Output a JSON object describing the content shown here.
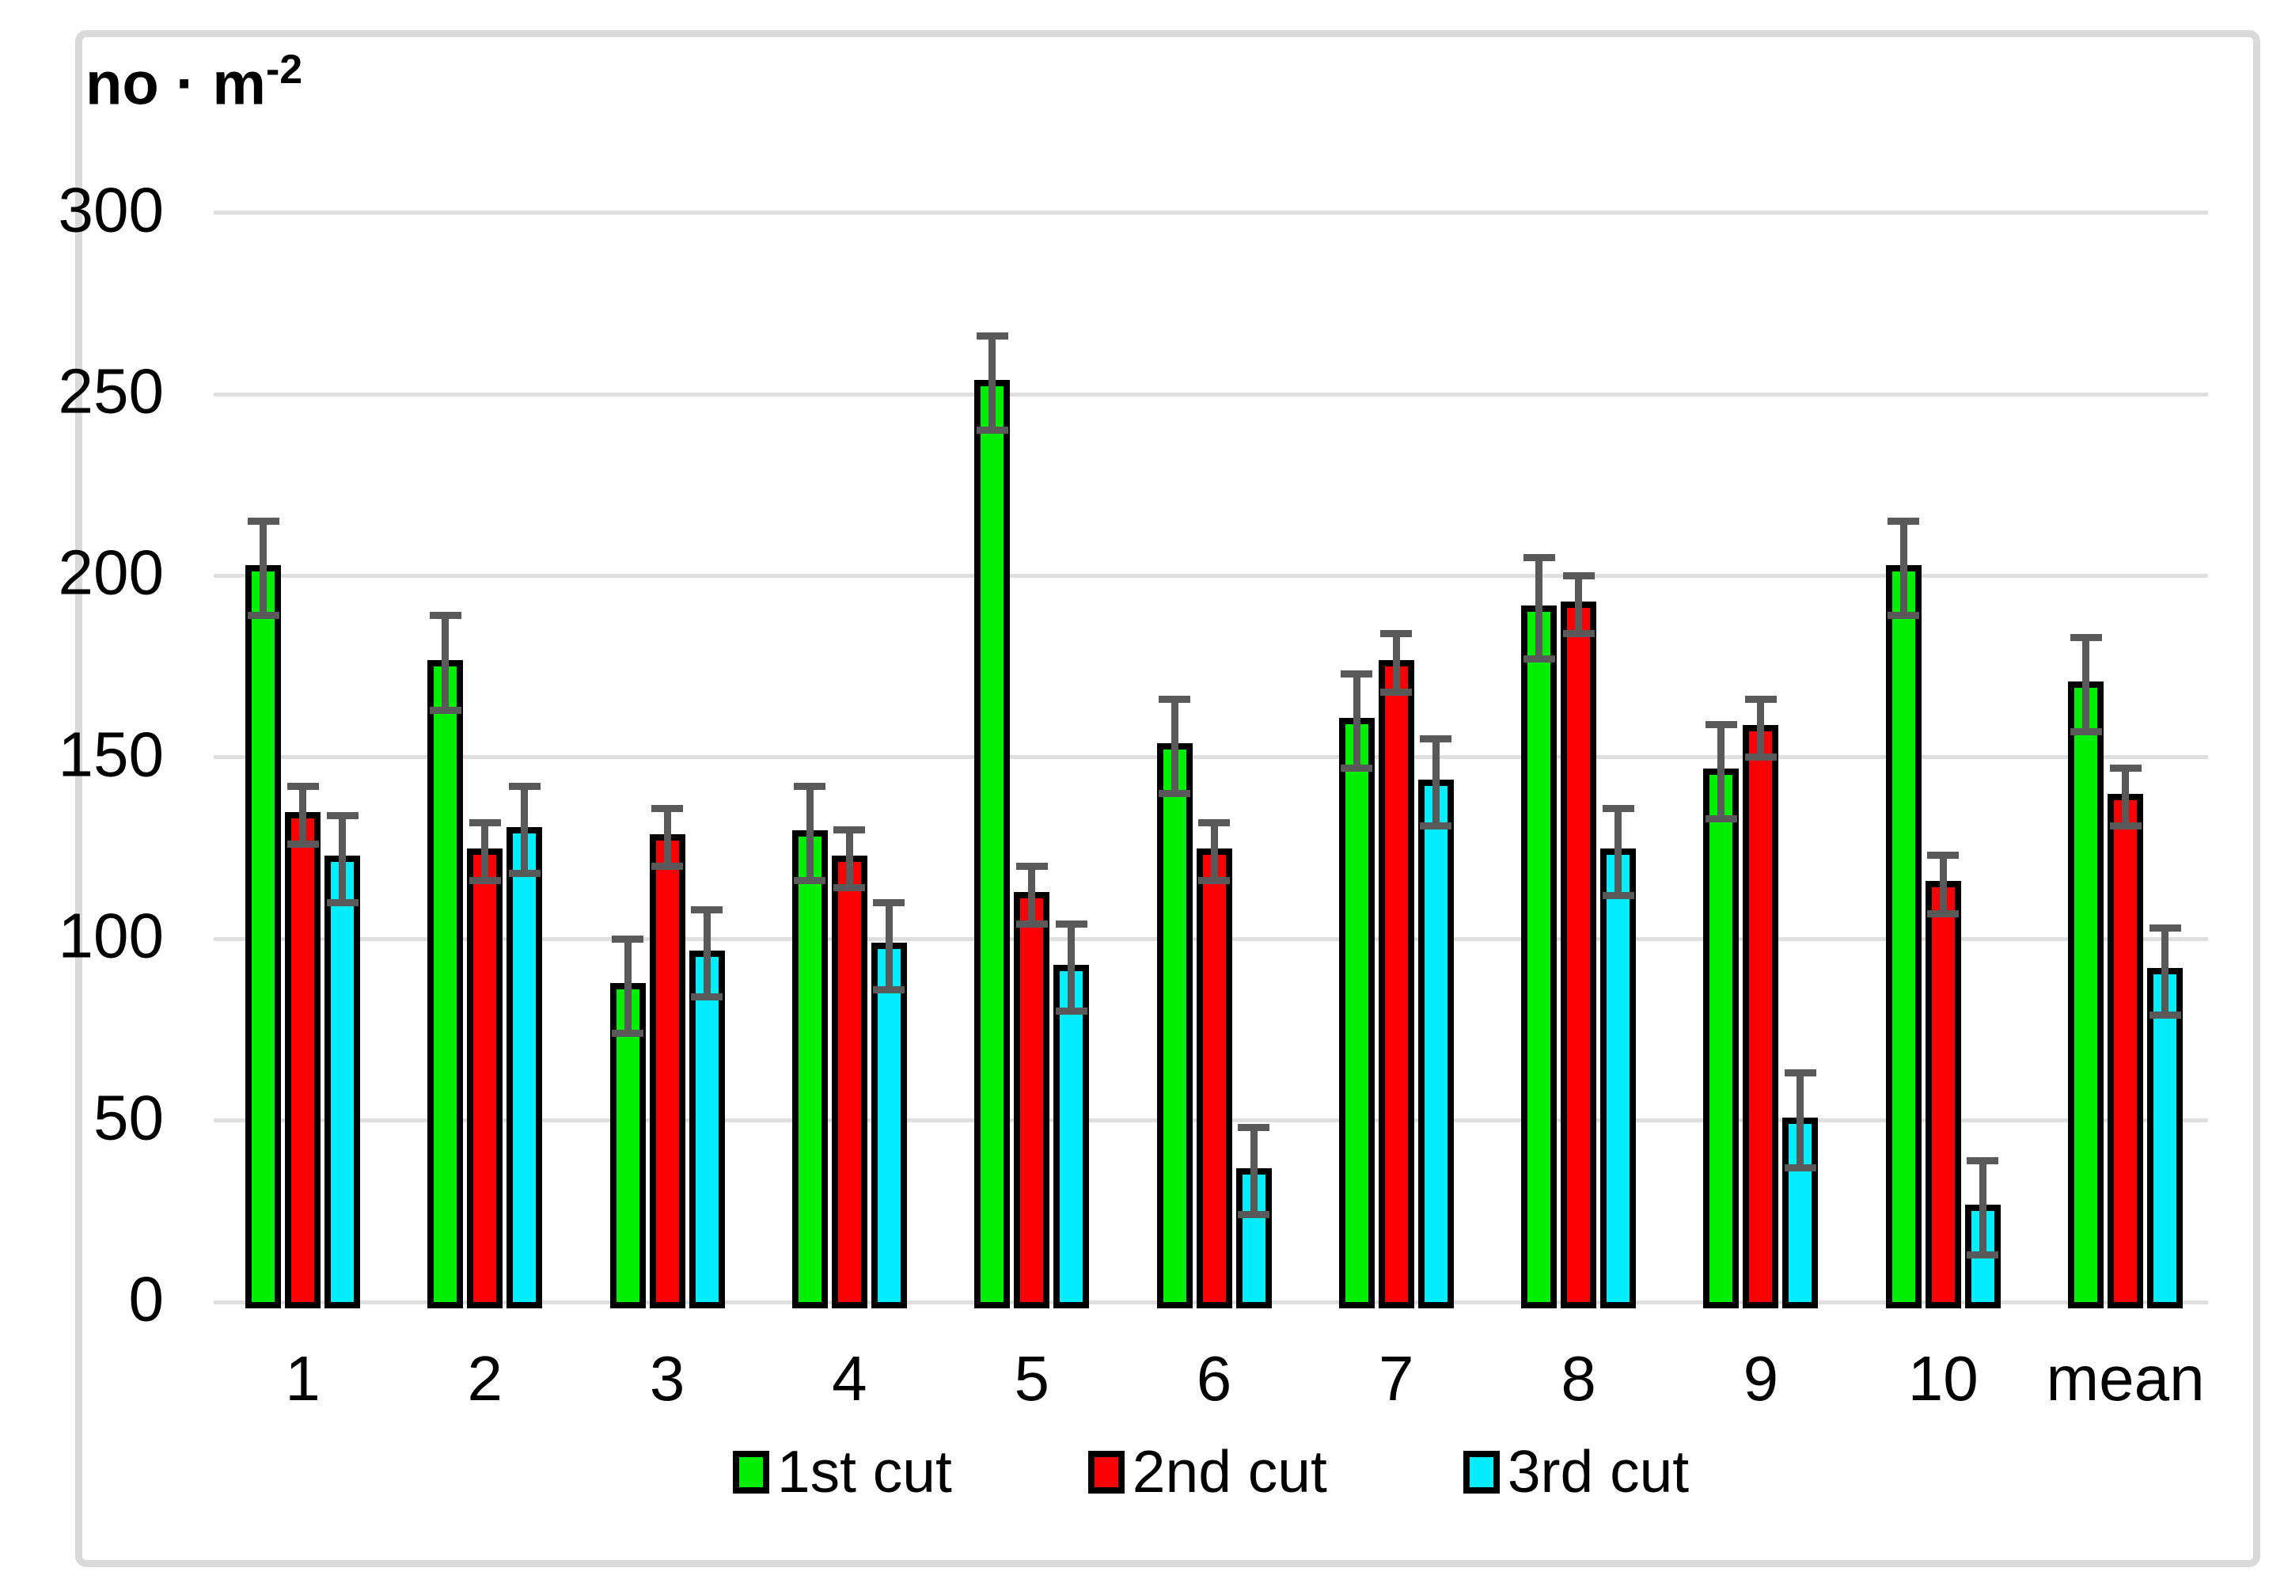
{
  "title": {
    "main": "no · m",
    "sup": "-2"
  },
  "chart_data": {
    "type": "bar",
    "title": "no · m^-2 (number per square meter)",
    "categories": [
      "1",
      "2",
      "3",
      "4",
      "5",
      "6",
      "7",
      "8",
      "9",
      "10",
      "mean"
    ],
    "series": [
      {
        "name": "1st cut",
        "color": "#00EE00",
        "values": [
          202,
          176,
          87,
          129,
          253,
          153,
          160,
          191,
          146,
          202,
          170
        ],
        "errors": [
          13,
          13,
          13,
          13,
          13,
          13,
          13,
          14,
          13,
          13,
          13
        ]
      },
      {
        "name": "2nd cut",
        "color": "#FA0000",
        "values": [
          134,
          124,
          128,
          122,
          112,
          124,
          176,
          192,
          158,
          115,
          139
        ],
        "errors": [
          8,
          8,
          8,
          8,
          8,
          8,
          8,
          8,
          8,
          8,
          8
        ]
      },
      {
        "name": "3rd cut",
        "color": "#00EEFF",
        "values": [
          122,
          130,
          96,
          98,
          92,
          36,
          143,
          124,
          50,
          26,
          91
        ],
        "errors": [
          12,
          12,
          12,
          12,
          12,
          12,
          12,
          12,
          13,
          13,
          12
        ]
      }
    ],
    "xlabel": "",
    "ylabel": "no · m^-2",
    "ylim": [
      0,
      300
    ],
    "yticks": [
      300,
      250,
      200,
      150,
      100,
      50,
      0
    ],
    "grid": true,
    "legend_position": "bottom",
    "error_bars": true
  },
  "colors": {
    "gridline": "#DFDFDF",
    "error_bar": "#595959",
    "frame_border": "#D9D9D9",
    "bar_outline": "#000000",
    "text": "#000000"
  }
}
